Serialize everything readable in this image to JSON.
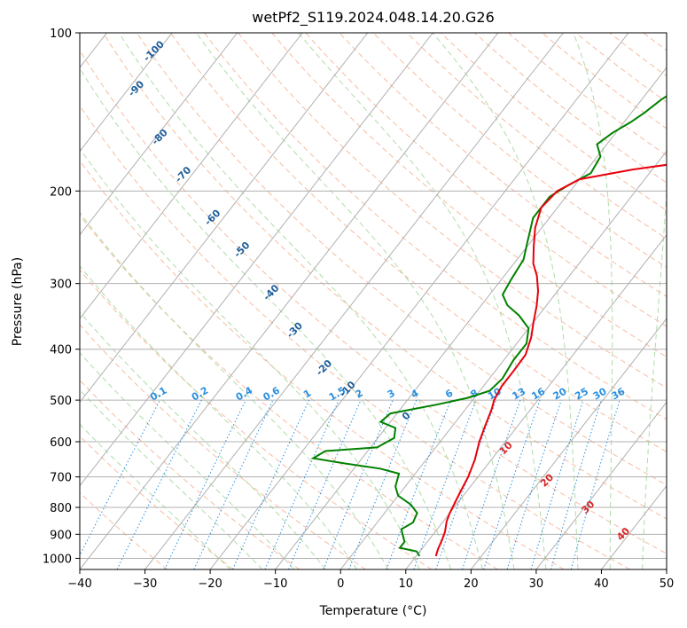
{
  "chart_data": {
    "type": "line",
    "title": "wetPf2_S119.2024.048.14.20.G26",
    "xlabel": "Temperature (°C)",
    "ylabel": "Pressure (hPa)",
    "xlim": [
      -40,
      50
    ],
    "ylim": [
      1050,
      100
    ],
    "y_scale": "log",
    "x_ticks": [
      -40,
      -30,
      -20,
      -10,
      0,
      10,
      20,
      30,
      40,
      50
    ],
    "y_ticks": [
      100,
      200,
      300,
      400,
      500,
      600,
      700,
      800,
      900,
      1000
    ],
    "grid": true,
    "colors": {
      "temperature": "#e8000b",
      "dewpoint": "#008000",
      "isotherm": "#b0b0b0",
      "dry_adiabat": "#f4a582",
      "moist_adiabat": "#a6d8a0",
      "mixing_ratio": "#2a8fe0",
      "pressure_grid": "#b0b0b0"
    },
    "series": [
      {
        "key": "temperature",
        "points": [
          [
            13.0,
            990
          ],
          [
            12.5,
            960
          ],
          [
            12.0,
            920
          ],
          [
            11.5,
            890
          ],
          [
            10.5,
            850
          ],
          [
            10.0,
            820
          ],
          [
            9.5,
            780
          ],
          [
            9.0,
            740
          ],
          [
            8.5,
            700
          ],
          [
            7.5,
            650
          ],
          [
            6.0,
            600
          ],
          [
            5.0,
            560
          ],
          [
            4.0,
            520
          ],
          [
            3.3,
            500
          ],
          [
            2.8,
            470
          ],
          [
            2.8,
            440
          ],
          [
            2.7,
            410
          ],
          [
            1.5,
            380
          ],
          [
            0.0,
            355
          ],
          [
            -1.5,
            330
          ],
          [
            -3.0,
            310
          ],
          [
            -5.0,
            290
          ],
          [
            -7.0,
            275
          ],
          [
            -9.0,
            255
          ],
          [
            -11.0,
            235
          ],
          [
            -12.5,
            215
          ],
          [
            -12.0,
            200
          ],
          [
            -10.0,
            190
          ],
          [
            -3.0,
            182
          ],
          [
            4.5,
            176
          ],
          [
            8.0,
            170
          ],
          [
            10.0,
            160
          ],
          [
            13.0,
            150
          ],
          [
            17.0,
            143
          ],
          [
            19.5,
            137
          ],
          [
            21.0,
            130
          ],
          [
            22.5,
            122
          ],
          [
            24.0,
            114
          ],
          [
            25.5,
            108
          ],
          [
            27.0,
            100
          ]
        ]
      },
      {
        "key": "dewpoint",
        "points": [
          [
            10.5,
            990
          ],
          [
            9.5,
            970
          ],
          [
            6.5,
            955
          ],
          [
            6.5,
            930
          ],
          [
            5.5,
            905
          ],
          [
            4.5,
            880
          ],
          [
            5.5,
            855
          ],
          [
            5.0,
            820
          ],
          [
            3.0,
            790
          ],
          [
            0.0,
            760
          ],
          [
            -1.5,
            730
          ],
          [
            -2.5,
            690
          ],
          [
            -6.0,
            675
          ],
          [
            -12.0,
            660
          ],
          [
            -17.5,
            645
          ],
          [
            -16.5,
            625
          ],
          [
            -9.0,
            615
          ],
          [
            -7.5,
            590
          ],
          [
            -8.5,
            565
          ],
          [
            -11.5,
            550
          ],
          [
            -11.0,
            530
          ],
          [
            -5.0,
            510
          ],
          [
            -1.0,
            495
          ],
          [
            1.5,
            480
          ],
          [
            2.0,
            455
          ],
          [
            1.5,
            420
          ],
          [
            1.5,
            390
          ],
          [
            0.0,
            365
          ],
          [
            -3.0,
            345
          ],
          [
            -6.0,
            330
          ],
          [
            -8.0,
            315
          ],
          [
            -8.5,
            295
          ],
          [
            -9.0,
            270
          ],
          [
            -10.5,
            250
          ],
          [
            -12.5,
            225
          ],
          [
            -12.5,
            205
          ],
          [
            -11.0,
            195
          ],
          [
            -9.0,
            185
          ],
          [
            -9.5,
            172
          ],
          [
            -11.5,
            163
          ],
          [
            -10.5,
            155
          ],
          [
            -9.0,
            148
          ],
          [
            -8.0,
            142
          ],
          [
            -7.0,
            134
          ],
          [
            -5.5,
            127
          ],
          [
            -3.5,
            120
          ],
          [
            -1.5,
            113
          ],
          [
            0.5,
            106
          ],
          [
            2.0,
            100
          ]
        ]
      }
    ],
    "dry_adiabat_labels": [
      "-100",
      "-90",
      "-80",
      "-70",
      "-60",
      "-50",
      "-40",
      "-30",
      "-20",
      "-10",
      "0"
    ],
    "moist_adiabat_labels": [
      "10",
      "20",
      "30",
      "40"
    ],
    "mixing_ratio_labels": [
      "0.1",
      "0.2",
      "0.4",
      "0.6",
      "1",
      "1.5",
      "2",
      "3",
      "4",
      "6",
      "8",
      "10",
      "13",
      "16",
      "20",
      "25",
      "30",
      "36"
    ]
  }
}
